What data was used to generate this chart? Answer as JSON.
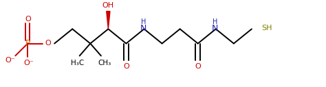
{
  "bg_color": "#ffffff",
  "bond_color": "#000000",
  "red_color": "#cc0000",
  "blue_color": "#2222aa",
  "olive_color": "#808000",
  "phosphate_color": "#cc6600",
  "bond_lw": 1.4,
  "fig_width": 4.74,
  "fig_height": 1.27,
  "dpi": 100,
  "xlim": [
    0,
    10
  ],
  "ylim": [
    0,
    2.7
  ]
}
